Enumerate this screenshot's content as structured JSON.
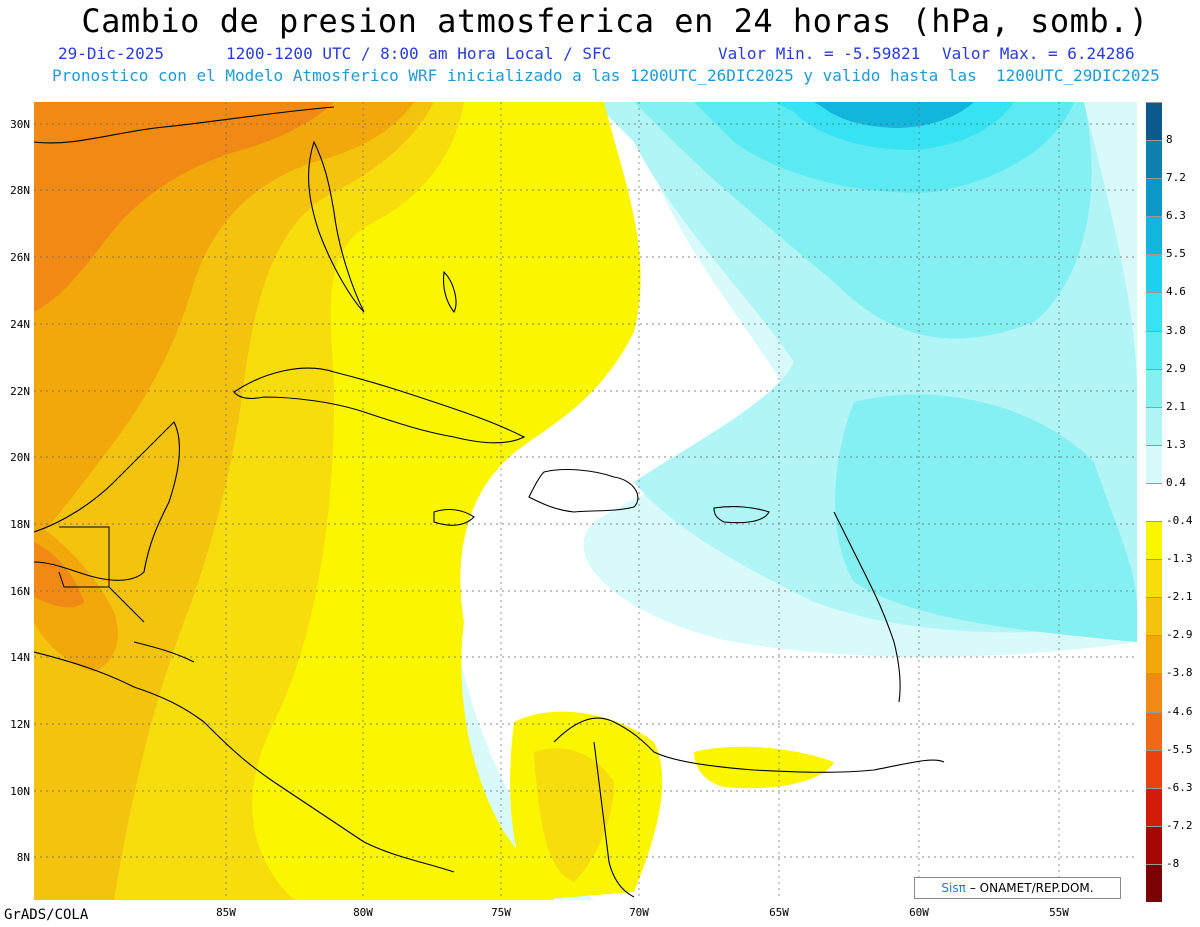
{
  "header": {
    "title": "Cambio de presion atmosferica en 24 horas (hPa, somb.)",
    "date": "29-Dic-2025",
    "time_range": "1200-1200 UTC / 8:00 am Hora Local / SFC",
    "min_value": "Valor Min. = -5.59821",
    "max_value": "Valor Max. = 6.24286",
    "forecast_note": "Pronostico con el Modelo Atmosferico WRF inicializado a las 1200UTC_26DIC2025 y valido hasta las  1200UTC_29DIC2025"
  },
  "axes": {
    "lat_labels": [
      "30N",
      "28N",
      "26N",
      "24N",
      "22N",
      "20N",
      "18N",
      "16N",
      "14N",
      "12N",
      "10N",
      "8N"
    ],
    "lon_labels": [
      "85W",
      "80W",
      "75W",
      "70W",
      "65W",
      "60W",
      "55W"
    ]
  },
  "colorbar": {
    "labels": [
      "8",
      "7.2",
      "6.3",
      "5.5",
      "4.6",
      "3.8",
      "2.9",
      "2.1",
      "1.3",
      "0.4",
      "-0.4",
      "-1.3",
      "-2.1",
      "-2.9",
      "-3.8",
      "-4.6",
      "-5.5",
      "-6.3",
      "-7.2",
      "-8"
    ],
    "colors": [
      "#0c5a8a",
      "#0f7fae",
      "#0b98c6",
      "#12b6dd",
      "#1cd0ee",
      "#37e2f2",
      "#5ceaf2",
      "#85f0f2",
      "#b1f5f6",
      "#d8fafa",
      "#ffffff",
      "#f9f600",
      "#f7dd0c",
      "#f4c30e",
      "#f2a70a",
      "#f08a14",
      "#ef6a14",
      "#e9420e",
      "#d11c0c",
      "#a60606",
      "#7a0202"
    ]
  },
  "footer": {
    "credit": "GrADS/COLA",
    "logo_sis": "Sisπ",
    "logo_org": "– ONAMET/REP.DOM."
  }
}
